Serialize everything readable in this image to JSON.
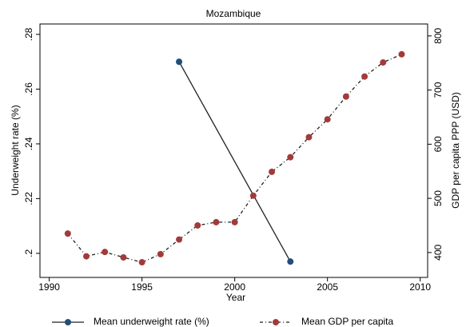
{
  "chart_data": {
    "type": "line",
    "title": "Mozambique",
    "x_label": "Year",
    "y_label": "Underweight rate (%)",
    "y2_label": "GDP per capita PPP (USD)",
    "xlim": [
      1989.5,
      2010.4
    ],
    "xticks": [
      1990,
      1995,
      2000,
      2005,
      2010
    ],
    "ylim": [
      0.1912,
      0.2838
    ],
    "yticks": [
      {
        "value": 0.2,
        "label": ".2"
      },
      {
        "value": 0.22,
        "label": ".22"
      },
      {
        "value": 0.24,
        "label": ".24"
      },
      {
        "value": 0.26,
        "label": ".26"
      },
      {
        "value": 0.28,
        "label": ".28"
      }
    ],
    "y2lim": [
      354,
      822
    ],
    "y2ticks": [
      400,
      500,
      600,
      700,
      800
    ],
    "series": [
      {
        "name": "Mean underweight rate (%)",
        "color": "#1f4e79",
        "line_color": "#222222",
        "dash": "solid",
        "x": [
          1997,
          2003
        ],
        "values": [
          0.27,
          0.197
        ]
      },
      {
        "name": "Mean GDP per capita",
        "color": "#a33a3a",
        "line_color": "#222222",
        "dash": "dashdot",
        "axis": "y2",
        "x": [
          1991,
          1992,
          1993,
          1994,
          1995,
          1996,
          1997,
          1998,
          1999,
          2000,
          2001,
          2002,
          2003,
          2004,
          2005,
          2006,
          2007,
          2008,
          2009
        ],
        "values": [
          435,
          393,
          401,
          391,
          382,
          397,
          424,
          450,
          456,
          456,
          505,
          549,
          576,
          613,
          646,
          688,
          725,
          751,
          766
        ]
      }
    ]
  }
}
